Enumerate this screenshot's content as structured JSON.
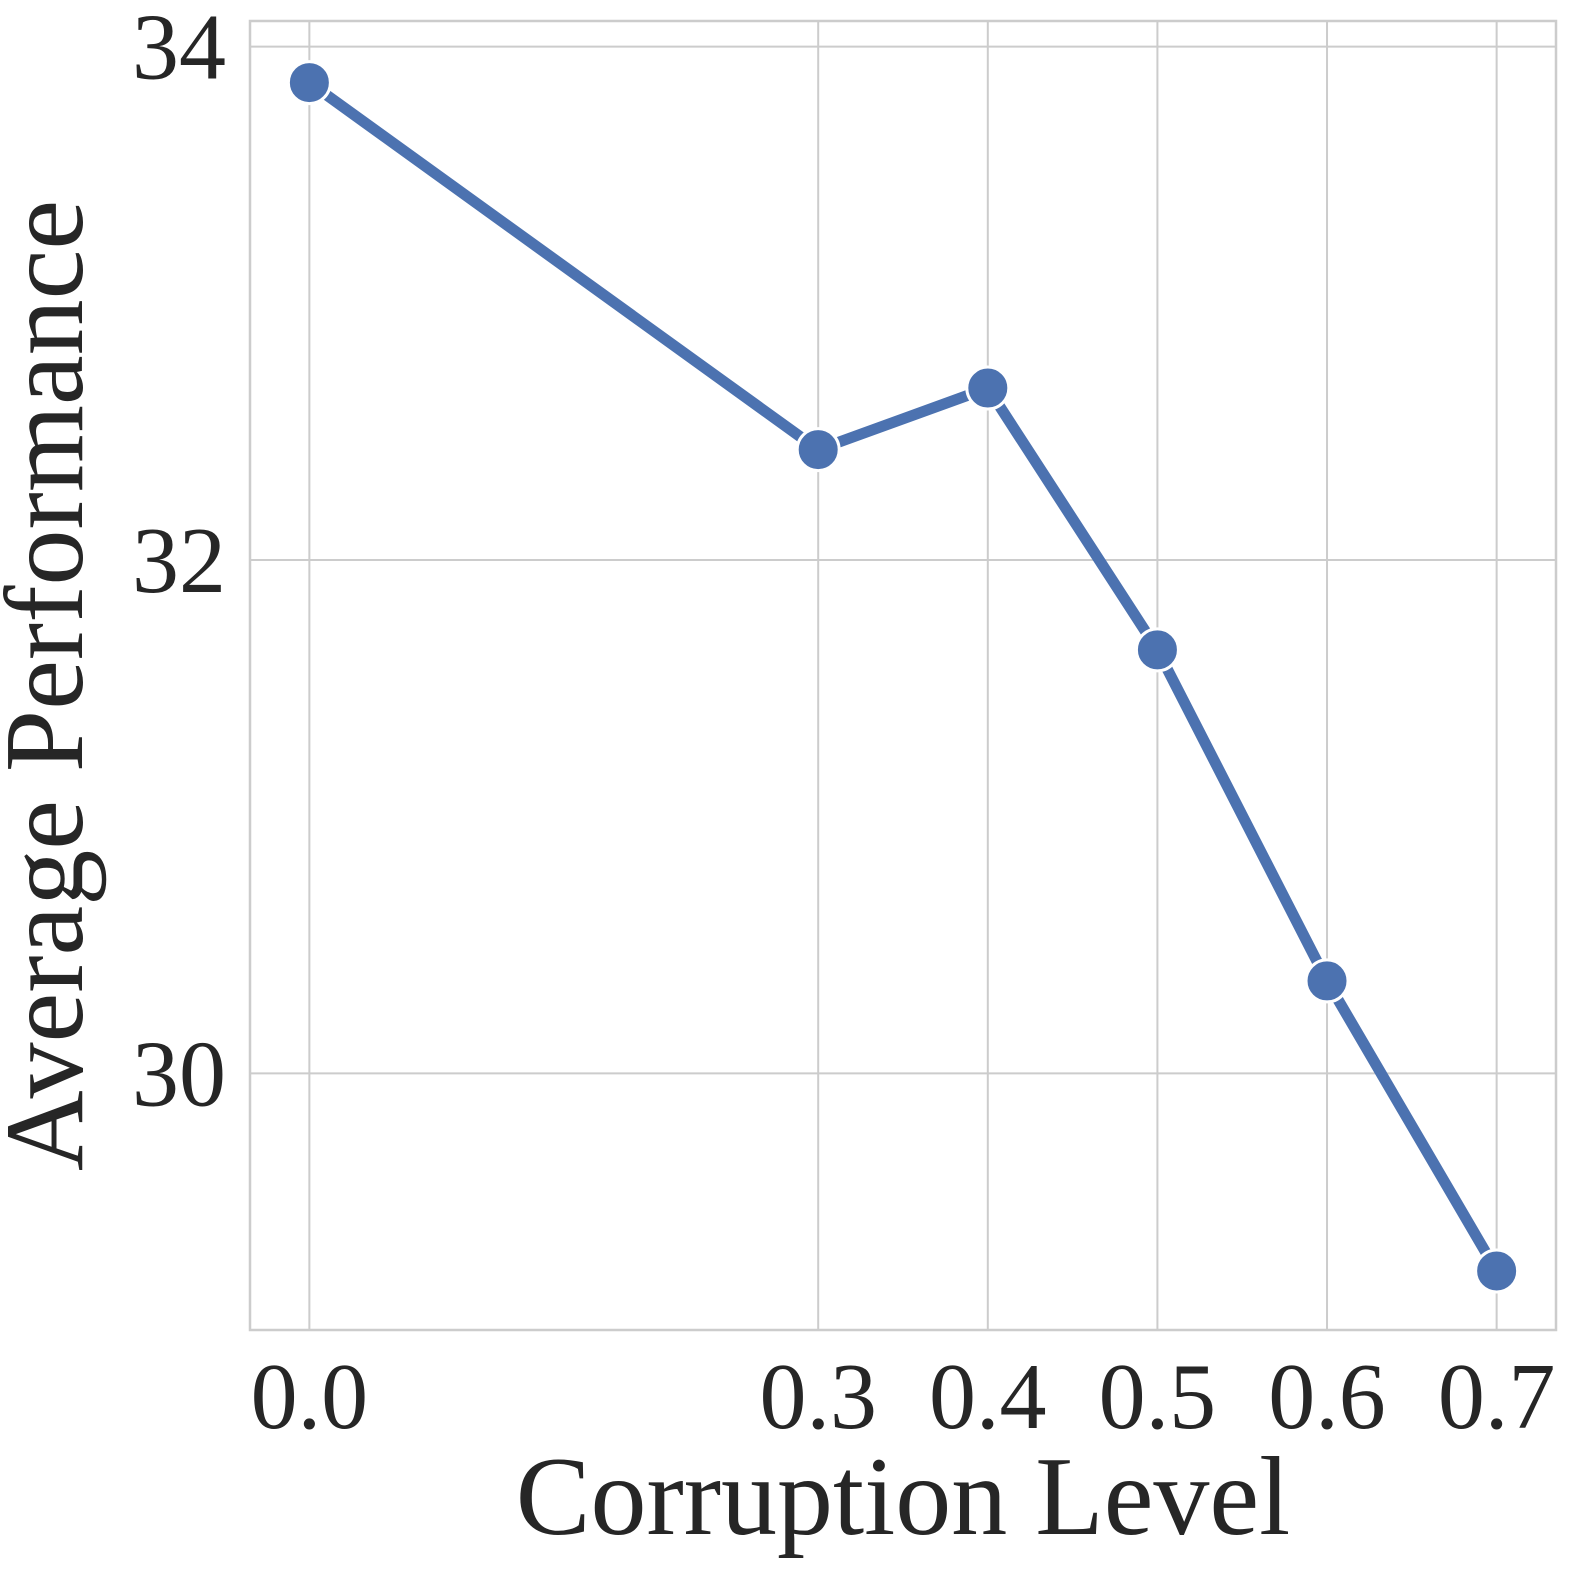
{
  "chart_data": {
    "type": "line",
    "title": "",
    "xlabel": "Corruption Level",
    "ylabel": "Average Performance",
    "xlim": [
      -0.035,
      0.735
    ],
    "ylim": [
      29.0,
      34.1
    ],
    "x_ticks": [
      0.0,
      0.3,
      0.4,
      0.5,
      0.6,
      0.7
    ],
    "x_tick_labels": [
      "0.0",
      "0.3",
      "0.4",
      "0.5",
      "0.6",
      "0.7"
    ],
    "y_ticks": [
      30,
      32,
      34
    ],
    "y_tick_labels": [
      "30",
      "32",
      "34"
    ],
    "grid": true,
    "legend": "none",
    "series": [
      {
        "x": [
          0.0,
          0.3,
          0.4,
          0.5,
          0.6,
          0.7
        ],
        "values": [
          33.86,
          32.43,
          32.67,
          31.65,
          30.36,
          29.23
        ],
        "color": "#4c72b0",
        "marker": "circle"
      }
    ]
  }
}
